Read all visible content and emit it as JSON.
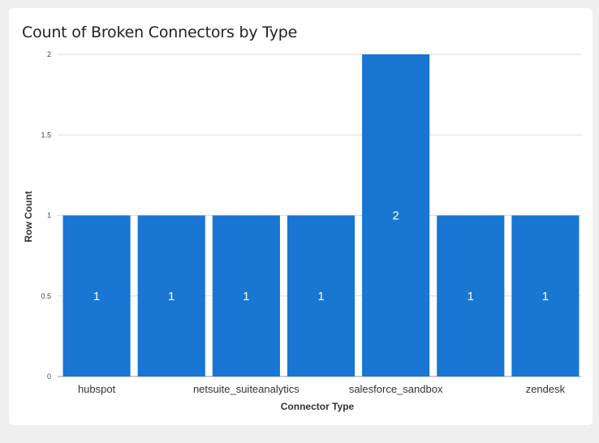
{
  "chart_data": {
    "type": "bar",
    "title": "Count of Broken Connectors by Type",
    "xlabel": "Connector Type",
    "ylabel": "Row Count",
    "ylim": [
      0,
      2
    ],
    "y_ticks": [
      "0",
      "0.5",
      "1",
      "1.5",
      "2"
    ],
    "y_tick_values": [
      0,
      0.5,
      1,
      1.5,
      2
    ],
    "categories": [
      "hubspot",
      "",
      "netsuite_suiteanalytics",
      "",
      "salesforce_sandbox",
      "",
      "zendesk"
    ],
    "values": [
      1,
      1,
      1,
      1,
      2,
      1,
      1
    ],
    "data_labels": [
      "1",
      "1",
      "1",
      "1",
      "2",
      "1",
      "1"
    ],
    "grid": true,
    "bar_color": "#1976d2"
  }
}
